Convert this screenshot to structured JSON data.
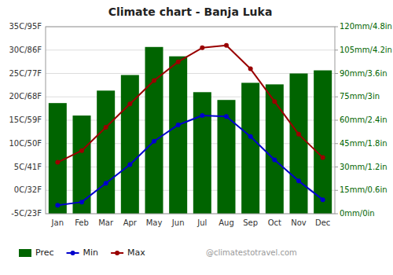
{
  "chart_data": {
    "type": "bar",
    "title": "Climate chart - Banja Luka",
    "categories": [
      "Jan",
      "Feb",
      "Mar",
      "Apr",
      "May",
      "Jun",
      "Jul",
      "Aug",
      "Sep",
      "Oct",
      "Nov",
      "Dec"
    ],
    "series": [
      {
        "name": "Prec",
        "type": "bar",
        "axis": "y2",
        "color": "#006400",
        "values": [
          71,
          63,
          79,
          89,
          107,
          101,
          78,
          73,
          84,
          83,
          90,
          92
        ]
      },
      {
        "name": "Min",
        "type": "line",
        "marker": "circle",
        "color": "#0000cc",
        "values": [
          -3.2,
          -2.5,
          1.5,
          5.5,
          10.5,
          14.0,
          16.0,
          15.8,
          11.5,
          6.5,
          2.0,
          -2.0
        ]
      },
      {
        "name": "Max",
        "type": "line",
        "marker": "circle",
        "color": "#990000",
        "values": [
          6.0,
          8.5,
          13.5,
          18.5,
          23.5,
          27.5,
          30.5,
          31.0,
          26.0,
          19.0,
          12.0,
          7.0
        ]
      }
    ],
    "ylim": [
      -5,
      35
    ],
    "yticks": [
      {
        "value": -5,
        "label": "-5C/23F"
      },
      {
        "value": 0,
        "label": "0C/32F"
      },
      {
        "value": 5,
        "label": "5C/41F"
      },
      {
        "value": 10,
        "label": "10C/50F"
      },
      {
        "value": 15,
        "label": "15C/59F"
      },
      {
        "value": 20,
        "label": "20C/68F"
      },
      {
        "value": 25,
        "label": "25C/77F"
      },
      {
        "value": 30,
        "label": "30C/86F"
      },
      {
        "value": 35,
        "label": "35C/95F"
      }
    ],
    "y2lim": [
      0,
      120
    ],
    "y2ticks": [
      {
        "value": 0,
        "label": "0mm/0in"
      },
      {
        "value": 15,
        "label": "15mm/0.6in"
      },
      {
        "value": 30,
        "label": "30mm/1.2in"
      },
      {
        "value": 45,
        "label": "45mm/1.8in"
      },
      {
        "value": 60,
        "label": "60mm/2.4in"
      },
      {
        "value": 75,
        "label": "75mm/3in"
      },
      {
        "value": 90,
        "label": "90mm/3.6in"
      },
      {
        "value": 105,
        "label": "105mm/4.2in"
      },
      {
        "value": 120,
        "label": "120mm/4.8in"
      }
    ],
    "grid": true,
    "legend": "bottom",
    "annotations": [
      "@climatestotravel.com"
    ]
  }
}
